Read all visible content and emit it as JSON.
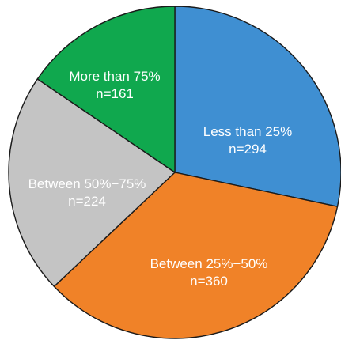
{
  "chart_data": {
    "type": "pie",
    "title": "",
    "slices": [
      {
        "label": "Less than 25%",
        "n_label": "n=294",
        "value": 294,
        "color": "#3f8fd2"
      },
      {
        "label": "Between 25%−50%",
        "n_label": "n=360",
        "value": 360,
        "color": "#f08228"
      },
      {
        "label": "Between 50%−75%",
        "n_label": "n=224",
        "value": 224,
        "color": "#c4c4c4"
      },
      {
        "label": "More than 75%",
        "n_label": "n=161",
        "value": 161,
        "color": "#10a84e"
      }
    ],
    "start": "12 o'clock",
    "direction": "clockwise"
  }
}
